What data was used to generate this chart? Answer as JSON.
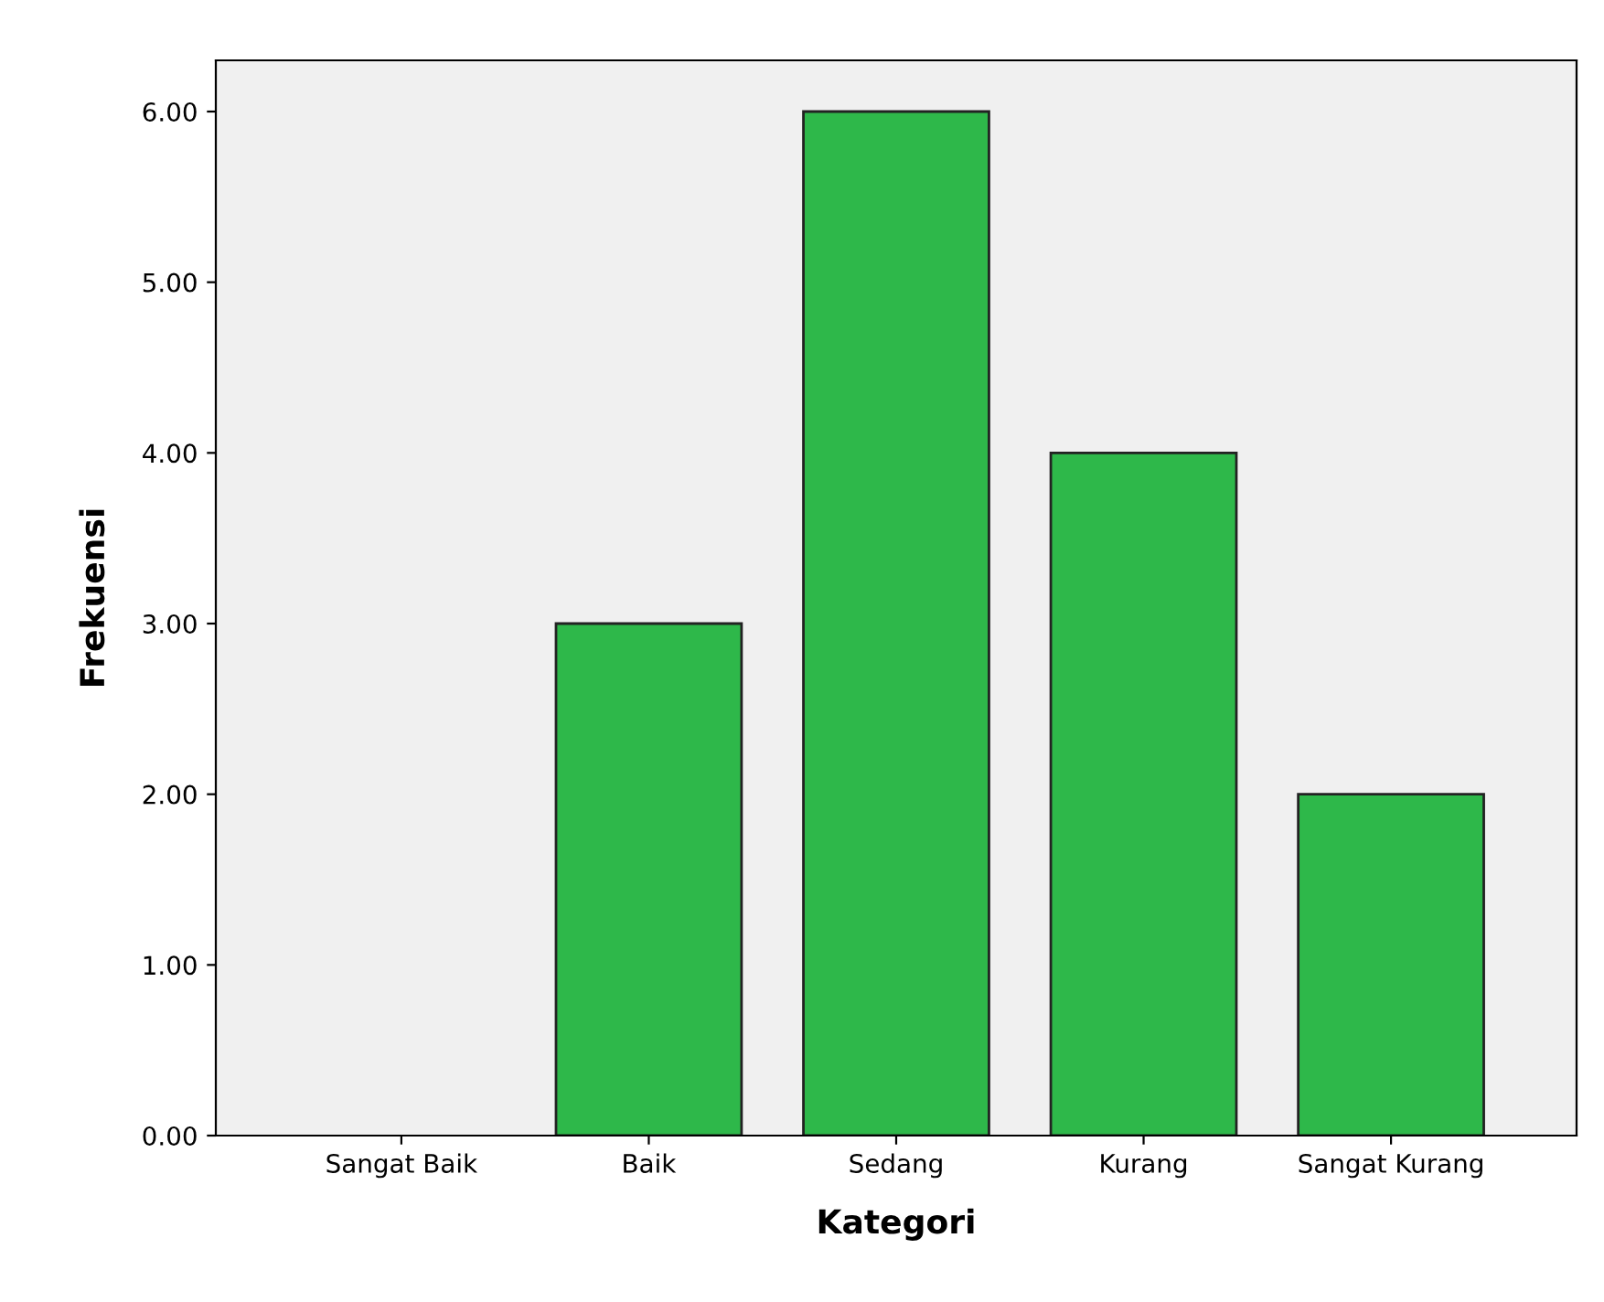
{
  "chart_data": {
    "type": "bar",
    "xlabel": "Kategori",
    "ylabel": "Frekuensi",
    "categories": [
      "Sangat Baik",
      "Baik",
      "Sedang",
      "Kurang",
      "Sangat Kurang"
    ],
    "values": [
      0,
      3,
      6,
      4,
      2
    ],
    "color": "#2eb84a",
    "ylim": [
      0,
      6.3
    ],
    "yticks": [
      {
        "value": 0,
        "label": "0.00"
      },
      {
        "value": 1,
        "label": "1.00"
      },
      {
        "value": 2,
        "label": "2.00"
      },
      {
        "value": 3,
        "label": "3.00"
      },
      {
        "value": 4,
        "label": "4.00"
      },
      {
        "value": 5,
        "label": "5.00"
      },
      {
        "value": 6,
        "label": "6.00"
      }
    ],
    "grid": false,
    "legend": false
  }
}
